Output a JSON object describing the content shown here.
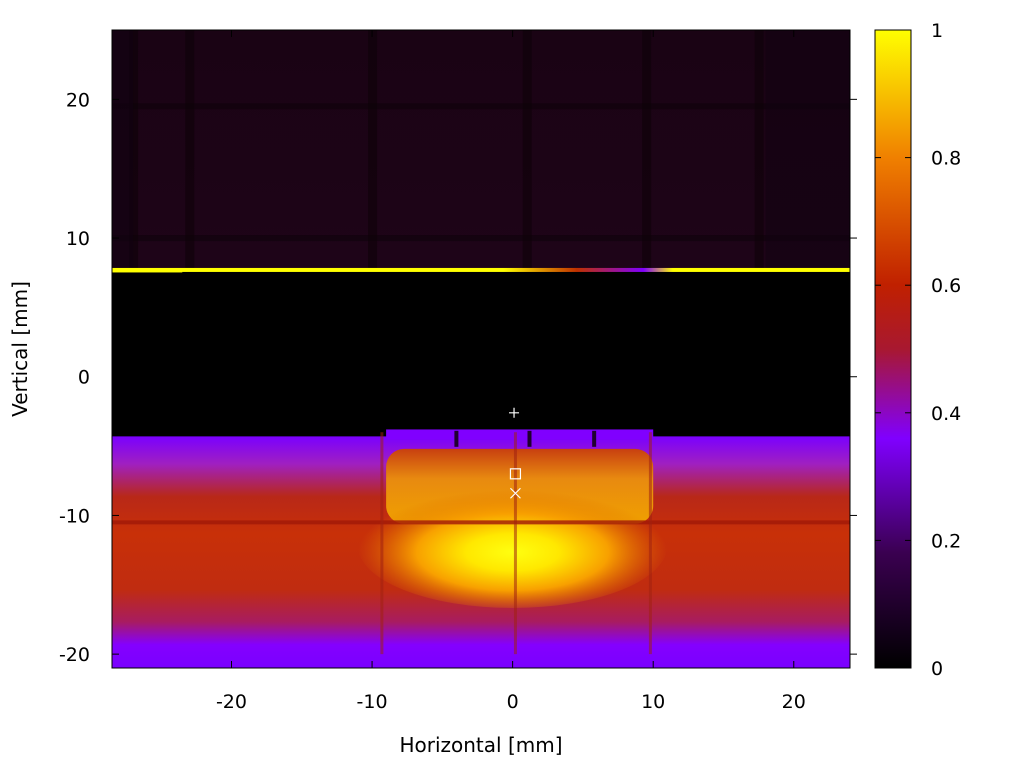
{
  "chart_data": {
    "type": "heatmap",
    "title": "",
    "xlabel": "Horizontal [mm]",
    "ylabel": "Vertical [mm]",
    "xlim": [
      -28.5,
      24
    ],
    "ylim": [
      -21,
      25
    ],
    "x_ticks": [
      -20,
      -10,
      0,
      10,
      20
    ],
    "x_tick_labels": [
      "-20",
      "-10",
      "0",
      "10",
      "20"
    ],
    "y_ticks": [
      -20,
      -10,
      0,
      10,
      20
    ],
    "y_tick_labels": [
      "-20",
      "-10",
      "0",
      "10",
      "20"
    ],
    "colorbar": {
      "range": [
        0,
        1
      ],
      "ticks": [
        0,
        0.2,
        0.4,
        0.6,
        0.8,
        1
      ],
      "tick_labels": [
        "0",
        "0.2",
        "0.4",
        "0.6",
        "0.8",
        "1"
      ],
      "colormap": [
        "#000000",
        "#3a0050",
        "#8000ff",
        "#c02000",
        "#f08000",
        "#ffff00"
      ]
    },
    "grid": false,
    "markers": [
      {
        "symbol": "+",
        "x": 0.1,
        "y": -2.6
      },
      {
        "symbol": "□",
        "x": 0.2,
        "y": -7.0
      },
      {
        "symbol": "×",
        "x": 0.2,
        "y": -8.4
      }
    ],
    "regions": [
      {
        "description": "dim upper region",
        "y_range": [
          7.7,
          25
        ],
        "intensity": 0.05
      },
      {
        "description": "bright horizontal line",
        "y": 7.7,
        "intensity": 1.0
      },
      {
        "description": "dark gap",
        "y_range": [
          -4.3,
          7.7
        ],
        "intensity": 0.0
      },
      {
        "description": "beam profile",
        "y_range": [
          -20.8,
          -4.3
        ],
        "peak_intensity": 1.0,
        "peak_x": 0,
        "peak_y": -12
      }
    ]
  }
}
